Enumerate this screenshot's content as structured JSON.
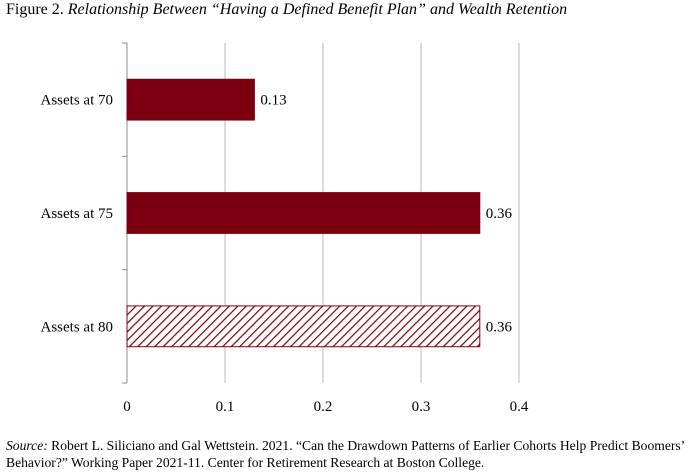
{
  "figure": {
    "label": "Figure 2.",
    "title_italic": "Relationship Between “Having a Defined Benefit Plan” and Wealth Retention"
  },
  "source": {
    "label": "Source:",
    "text": " Robert L. Siliciano and Gal Wettstein. 2021. “Can the Drawdown Patterns of Earlier Cohorts Help Predict Boomers’ Behavior?” Working Paper 2021-11. Center for Retirement Research at Boston College."
  },
  "chart_data": {
    "type": "bar",
    "orientation": "horizontal",
    "categories": [
      "Assets at 70",
      "Assets at 75",
      "Assets at 80"
    ],
    "values": [
      0.13,
      0.36,
      0.36
    ],
    "data_labels": [
      "0.13",
      "0.36",
      "0.36"
    ],
    "bar_styles": [
      "solid",
      "solid",
      "hatched"
    ],
    "bar_color": "#7a0010",
    "xlim": [
      0,
      0.4
    ],
    "xticks": [
      0,
      0.1,
      0.2,
      0.3,
      0.4
    ],
    "xtick_labels": [
      "0",
      "0.1",
      "0.2",
      "0.3",
      "0.4"
    ],
    "grid": "vertical",
    "legend": "none",
    "title": "",
    "xlabel": "",
    "ylabel": ""
  }
}
